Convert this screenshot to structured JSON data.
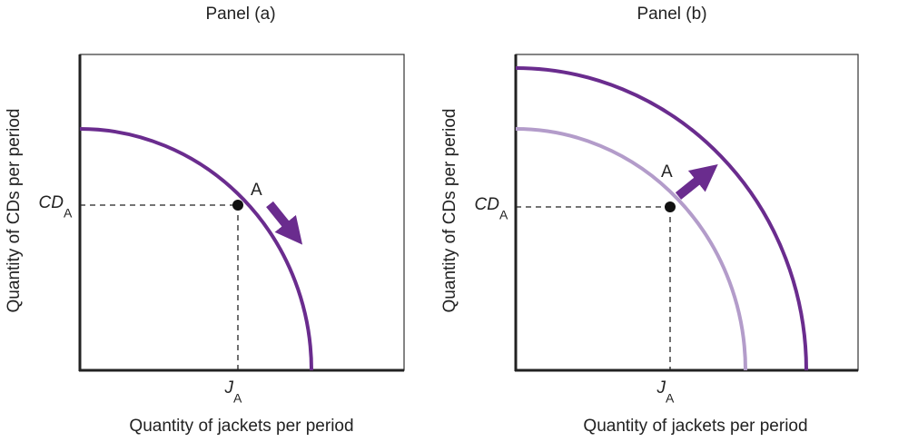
{
  "panels": [
    {
      "title": "Panel (a)",
      "y_axis_label": "Quantity of CDs per period",
      "x_axis_label": "Quantity of jackets per period",
      "y_point_label": {
        "main": "CD",
        "sub": "A"
      },
      "x_point_label": {
        "main": "J",
        "sub": "A"
      },
      "point_label": "A"
    },
    {
      "title": "Panel (b)",
      "y_axis_label": "Quantity of CDs per period",
      "x_axis_label": "Quantity of jackets per period",
      "y_point_label": {
        "main": "CD",
        "sub": "A"
      },
      "x_point_label": {
        "main": "J",
        "sub": "A"
      },
      "point_label": "A"
    }
  ]
}
